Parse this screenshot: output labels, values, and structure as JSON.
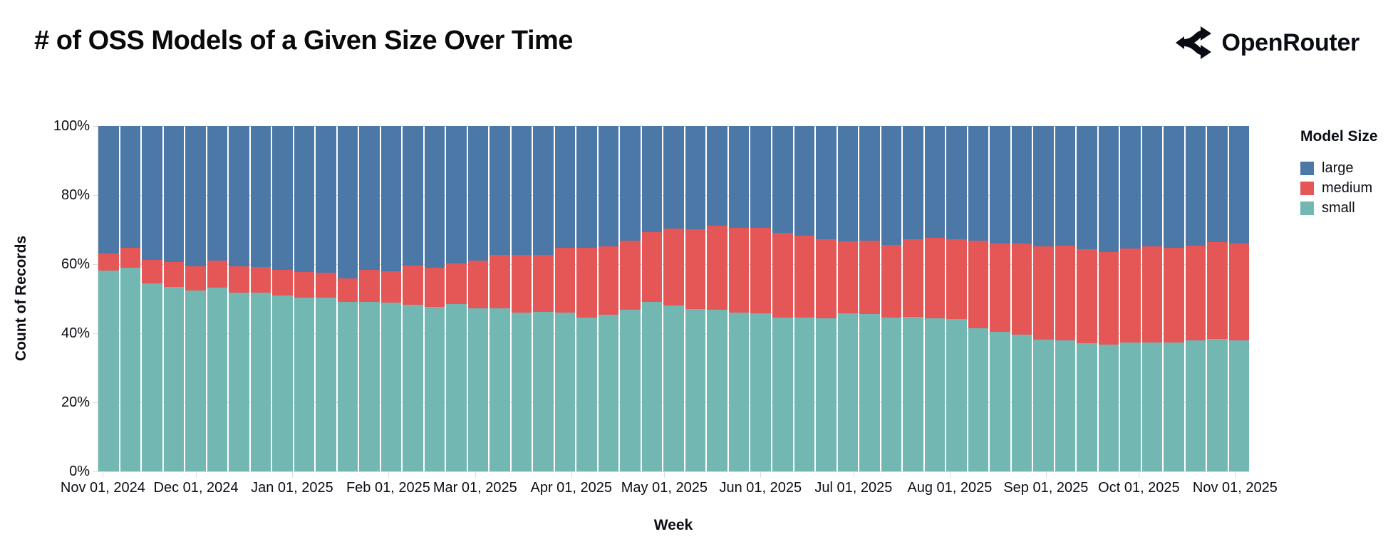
{
  "header": {
    "title": "# of OSS Models of a Given Size Over Time",
    "brand": "OpenRouter"
  },
  "chart_data": {
    "type": "bar",
    "stacked": true,
    "normalized_percent": true,
    "title": "# of OSS Models of a Given Size Over Time",
    "xlabel": "Week",
    "ylabel": "Count of Records",
    "ylim": [
      0,
      100
    ],
    "grid": true,
    "y_ticks": [
      {
        "label": "0%",
        "value": 0
      },
      {
        "label": "20%",
        "value": 20
      },
      {
        "label": "40%",
        "value": 40
      },
      {
        "label": "60%",
        "value": 60
      },
      {
        "label": "80%",
        "value": 80
      },
      {
        "label": "100%",
        "value": 100
      }
    ],
    "x_ticks": [
      {
        "label": "Nov 01, 2024",
        "day": 0
      },
      {
        "label": "Dec 01, 2024",
        "day": 30
      },
      {
        "label": "Jan 01, 2025",
        "day": 61
      },
      {
        "label": "Feb 01, 2025",
        "day": 92
      },
      {
        "label": "Mar 01, 2025",
        "day": 120
      },
      {
        "label": "Apr 01, 2025",
        "day": 151
      },
      {
        "label": "May 01, 2025",
        "day": 181
      },
      {
        "label": "Jun 01, 2025",
        "day": 212
      },
      {
        "label": "Jul 01, 2025",
        "day": 242
      },
      {
        "label": "Aug 01, 2025",
        "day": 273
      },
      {
        "label": "Sep 01, 2025",
        "day": 304
      },
      {
        "label": "Oct 01, 2025",
        "day": 334
      },
      {
        "label": "Nov 01, 2025",
        "day": 365
      }
    ],
    "weeks": 53,
    "legend": {
      "title": "Model Size",
      "position": "right",
      "items": [
        {
          "label": "large",
          "color": "#4c78a8"
        },
        {
          "label": "medium",
          "color": "#e45756"
        },
        {
          "label": "small",
          "color": "#72b7b2"
        }
      ]
    },
    "stack_order_bottom_to_top": [
      "small",
      "medium",
      "large"
    ],
    "series": [
      {
        "name": "small",
        "color": "#72b7b2",
        "values": [
          58.2,
          58.9,
          54.5,
          53.4,
          52.4,
          53.1,
          51.7,
          51.7,
          51.0,
          50.3,
          50.3,
          49.0,
          49.1,
          48.8,
          48.3,
          47.6,
          48.5,
          47.3,
          47.3,
          46.0,
          46.2,
          45.9,
          44.6,
          45.3,
          46.9,
          49.0,
          48.1,
          47.0,
          46.7,
          45.9,
          45.8,
          44.5,
          44.6,
          44.3,
          45.7,
          45.6,
          44.5,
          44.8,
          44.3,
          44.2,
          41.4,
          40.5,
          39.5,
          38.2,
          38.0,
          37.2,
          36.6,
          37.4,
          37.4,
          37.4,
          38.0,
          38.3,
          38.0
        ]
      },
      {
        "name": "medium",
        "color": "#e45756",
        "values": [
          4.8,
          5.8,
          6.8,
          7.2,
          6.9,
          7.9,
          7.6,
          7.4,
          7.4,
          7.4,
          7.2,
          6.8,
          9.3,
          9.1,
          11.2,
          11.3,
          11.8,
          13.8,
          15.4,
          16.6,
          16.5,
          18.8,
          20.1,
          19.9,
          19.9,
          20.2,
          22.3,
          23.2,
          24.4,
          24.7,
          24.7,
          24.5,
          23.6,
          23.0,
          21.0,
          21.2,
          21.1,
          22.5,
          23.4,
          23.0,
          25.4,
          25.5,
          26.5,
          27.0,
          27.4,
          27.2,
          27.0,
          27.1,
          27.8,
          27.3,
          27.4,
          28.0,
          27.9
        ]
      },
      {
        "name": "large",
        "color": "#4c78a8",
        "values": [
          37.0,
          35.3,
          38.7,
          39.4,
          40.7,
          39.0,
          40.7,
          40.9,
          41.6,
          42.3,
          42.5,
          44.2,
          41.6,
          42.1,
          40.5,
          41.1,
          39.7,
          38.9,
          37.3,
          37.4,
          37.3,
          35.3,
          35.3,
          34.8,
          33.2,
          30.8,
          29.6,
          29.8,
          28.9,
          29.4,
          29.5,
          31.0,
          31.8,
          32.7,
          33.3,
          33.2,
          34.4,
          32.7,
          32.3,
          32.8,
          33.2,
          34.0,
          34.0,
          34.8,
          34.6,
          35.6,
          36.4,
          35.5,
          34.8,
          35.3,
          34.6,
          33.7,
          34.1
        ]
      }
    ],
    "colors": {
      "background": "#ffffff",
      "gridline": "#dddddd",
      "axis_text": "#0b0e14"
    }
  }
}
